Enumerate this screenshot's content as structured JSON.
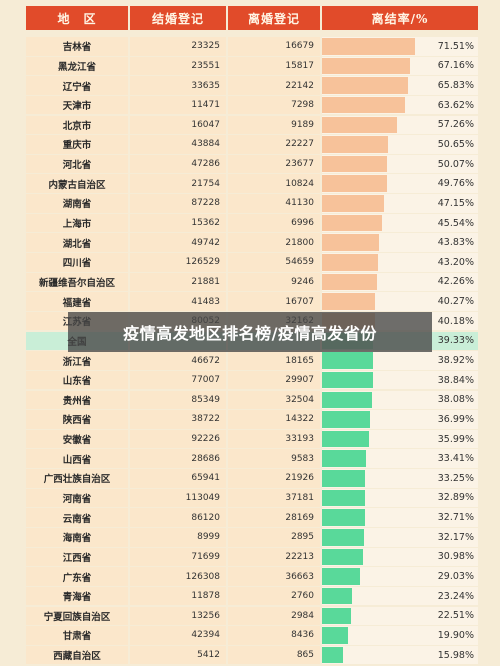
{
  "headers": {
    "region": "地　区",
    "marriages": "结婚登记",
    "divorces": "离婚登记",
    "rate": "离结率/%"
  },
  "overlay_caption": "疫情高发地区排名榜/疫情高发省份",
  "rows": [
    {
      "region": "吉林省",
      "marriages": "23325",
      "divorces": "16679",
      "rate": "71.51%",
      "rate_value": 71.51
    },
    {
      "region": "黑龙江省",
      "marriages": "23551",
      "divorces": "15817",
      "rate": "67.16%",
      "rate_value": 67.16
    },
    {
      "region": "辽宁省",
      "marriages": "33635",
      "divorces": "22142",
      "rate": "65.83%",
      "rate_value": 65.83
    },
    {
      "region": "天津市",
      "marriages": "11471",
      "divorces": "7298",
      "rate": "63.62%",
      "rate_value": 63.62
    },
    {
      "region": "北京市",
      "marriages": "16047",
      "divorces": "9189",
      "rate": "57.26%",
      "rate_value": 57.26
    },
    {
      "region": "重庆市",
      "marriages": "43884",
      "divorces": "22227",
      "rate": "50.65%",
      "rate_value": 50.65
    },
    {
      "region": "河北省",
      "marriages": "47286",
      "divorces": "23677",
      "rate": "50.07%",
      "rate_value": 50.07
    },
    {
      "region": "内蒙古自治区",
      "marriages": "21754",
      "divorces": "10824",
      "rate": "49.76%",
      "rate_value": 49.76
    },
    {
      "region": "湖南省",
      "marriages": "87228",
      "divorces": "41130",
      "rate": "47.15%",
      "rate_value": 47.15
    },
    {
      "region": "上海市",
      "marriages": "15362",
      "divorces": "6996",
      "rate": "45.54%",
      "rate_value": 45.54
    },
    {
      "region": "湖北省",
      "marriages": "49742",
      "divorces": "21800",
      "rate": "43.83%",
      "rate_value": 43.83
    },
    {
      "region": "四川省",
      "marriages": "126529",
      "divorces": "54659",
      "rate": "43.20%",
      "rate_value": 43.2
    },
    {
      "region": "新疆维吾尔自治区",
      "marriages": "21881",
      "divorces": "9246",
      "rate": "42.26%",
      "rate_value": 42.26
    },
    {
      "region": "福建省",
      "marriages": "41483",
      "divorces": "16707",
      "rate": "40.27%",
      "rate_value": 40.27
    },
    {
      "region": "江苏省",
      "marriages": "80052",
      "divorces": "32162",
      "rate": "40.18%",
      "rate_value": 40.18
    },
    {
      "region": "全国",
      "marriages": "",
      "divorces": "",
      "rate": "39.33%",
      "rate_value": 39.33,
      "national": true
    },
    {
      "region": "浙江省",
      "marriages": "46672",
      "divorces": "18165",
      "rate": "38.92%",
      "rate_value": 38.92
    },
    {
      "region": "山东省",
      "marriages": "77007",
      "divorces": "29907",
      "rate": "38.84%",
      "rate_value": 38.84
    },
    {
      "region": "贵州省",
      "marriages": "85349",
      "divorces": "32504",
      "rate": "38.08%",
      "rate_value": 38.08
    },
    {
      "region": "陕西省",
      "marriages": "38722",
      "divorces": "14322",
      "rate": "36.99%",
      "rate_value": 36.99
    },
    {
      "region": "安徽省",
      "marriages": "92226",
      "divorces": "33193",
      "rate": "35.99%",
      "rate_value": 35.99
    },
    {
      "region": "山西省",
      "marriages": "28686",
      "divorces": "9583",
      "rate": "33.41%",
      "rate_value": 33.41
    },
    {
      "region": "广西壮族自治区",
      "marriages": "65941",
      "divorces": "21926",
      "rate": "33.25%",
      "rate_value": 33.25
    },
    {
      "region": "河南省",
      "marriages": "113049",
      "divorces": "37181",
      "rate": "32.89%",
      "rate_value": 32.89
    },
    {
      "region": "云南省",
      "marriages": "86120",
      "divorces": "28169",
      "rate": "32.71%",
      "rate_value": 32.71
    },
    {
      "region": "海南省",
      "marriages": "8999",
      "divorces": "2895",
      "rate": "32.17%",
      "rate_value": 32.17
    },
    {
      "region": "江西省",
      "marriages": "71699",
      "divorces": "22213",
      "rate": "30.98%",
      "rate_value": 30.98
    },
    {
      "region": "广东省",
      "marriages": "126308",
      "divorces": "36663",
      "rate": "29.03%",
      "rate_value": 29.03
    },
    {
      "region": "青海省",
      "marriages": "11878",
      "divorces": "2760",
      "rate": "23.24%",
      "rate_value": 23.24
    },
    {
      "region": "宁夏回族自治区",
      "marriages": "13256",
      "divorces": "2984",
      "rate": "22.51%",
      "rate_value": 22.51
    },
    {
      "region": "甘肃省",
      "marriages": "42394",
      "divorces": "8436",
      "rate": "19.90%",
      "rate_value": 19.9
    },
    {
      "region": "西藏自治区",
      "marriages": "5412",
      "divorces": "865",
      "rate": "15.98%",
      "rate_value": 15.98
    }
  ],
  "colors": {
    "header": "#e14b2a",
    "bar_high": "#f7c29a",
    "bar_low": "#59d99a",
    "national_row": "#c9eed7"
  }
}
